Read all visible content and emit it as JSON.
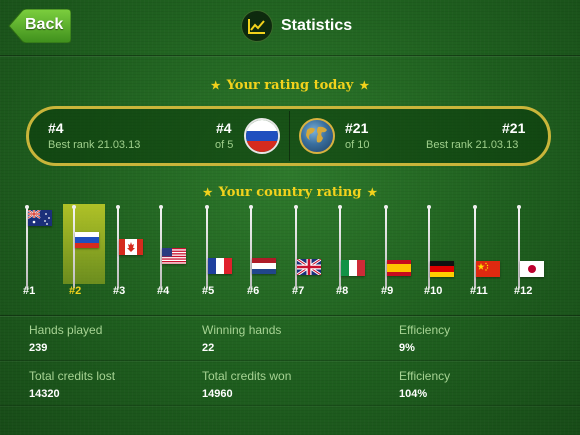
{
  "header": {
    "back_label": "Back",
    "title": "Statistics",
    "icon": "line-chart-icon"
  },
  "rating_today": {
    "label": "Your rating today",
    "country": {
      "rank": "#4",
      "best_rank": "Best rank 21.03.13",
      "position": "#4",
      "of": "of 5",
      "flag": "russia"
    },
    "world": {
      "rank": "#21",
      "of": "of 10",
      "rank_right": "#21",
      "best_rank": "Best rank 21.03.13",
      "icon": "globe-icon"
    }
  },
  "country_rating": {
    "label": "Your country rating",
    "entries": [
      {
        "rank": "#1",
        "flag": "australia"
      },
      {
        "rank": "#2",
        "flag": "russia",
        "highlight": true
      },
      {
        "rank": "#3",
        "flag": "canada"
      },
      {
        "rank": "#4",
        "flag": "usa"
      },
      {
        "rank": "#5",
        "flag": "france"
      },
      {
        "rank": "#6",
        "flag": "netherlands"
      },
      {
        "rank": "#7",
        "flag": "uk"
      },
      {
        "rank": "#8",
        "flag": "italy"
      },
      {
        "rank": "#9",
        "flag": "spain"
      },
      {
        "rank": "#10",
        "flag": "germany"
      },
      {
        "rank": "#11",
        "flag": "china"
      },
      {
        "rank": "#12",
        "flag": "japan"
      }
    ]
  },
  "stats": {
    "hands_played_label": "Hands played",
    "hands_played": "239",
    "winning_hands_label": "Winning hands",
    "winning_hands": "22",
    "efficiency_label": "Efficiency",
    "efficiency": "9%",
    "credits_lost_label": "Total credits lost",
    "credits_lost": "14320",
    "credits_won_label": "Total credits won",
    "credits_won": "14960",
    "efficiency2_label": "Efficiency",
    "efficiency2": "104%"
  },
  "colors": {
    "accent_yellow": "#f2d21c",
    "label_green": "#a6d393",
    "background": "#1f5f1f"
  }
}
